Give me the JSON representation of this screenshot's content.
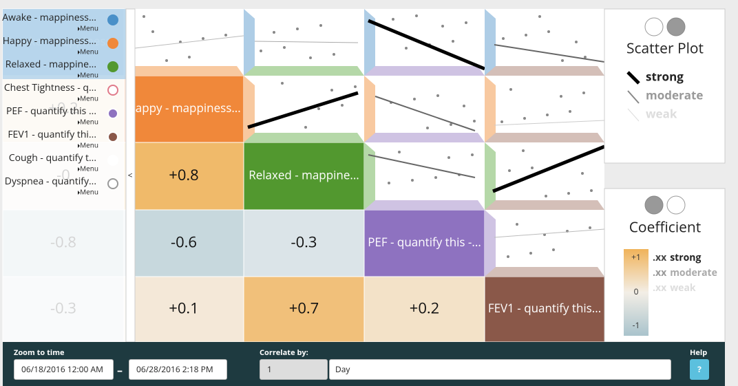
{
  "sidebar": {
    "items": [
      {
        "label": "Awake - mappiness...",
        "menu": "Menu"
      },
      {
        "label": "Happy - mappiness...",
        "menu": "Menu"
      },
      {
        "label": "Relaxed - mappine...",
        "menu": "Menu"
      },
      {
        "label": "Chest Tightness - q...",
        "menu": "Menu"
      },
      {
        "label": "PEF - quantify this ...",
        "menu": "Menu"
      },
      {
        "label": "FEV1 - quantify thi...",
        "menu": "Menu"
      },
      {
        "label": "Cough - quantify t...",
        "menu": "Menu"
      },
      {
        "label": "Dyspnea - quantify...",
        "menu": "Menu"
      }
    ],
    "collapse": "<"
  },
  "matrix": {
    "diagonal": [
      "Awake - mappiness...",
      "Happy - mappiness...",
      "Relaxed - mappine...",
      "PEF - quantify this -...",
      "FEV1 - quantify this..."
    ],
    "coefficients": [
      [
        "+0.2"
      ],
      [
        "-0",
        "+0.8"
      ],
      [
        "-0.8",
        "-0.6",
        "-0.3"
      ],
      [
        "-0.3",
        "+0.1",
        "+0.7",
        "+0.2"
      ]
    ]
  },
  "legend": {
    "scatter": {
      "title": "Scatter Plot",
      "strong": "strong",
      "moderate": "moderate",
      "weak": "weak"
    },
    "coefficient": {
      "title": "Coefficient",
      "max": "+1",
      "mid": "0",
      "min": "-1",
      "labels": [
        {
          "sample": ".xx",
          "text": "strong"
        },
        {
          "sample": ".xx",
          "text": "moderate"
        },
        {
          "sample": ".xx",
          "text": "weak"
        }
      ]
    }
  },
  "toolbar": {
    "zoom_label": "Zoom to time",
    "start": "06/18/2016 12:00 AM",
    "dash": "–",
    "end": "06/28/2016 2:18 PM",
    "correlate_label": "Correlate by:",
    "amount": "1",
    "unit": "Day",
    "help_label": "Help",
    "help_button": "?"
  }
}
